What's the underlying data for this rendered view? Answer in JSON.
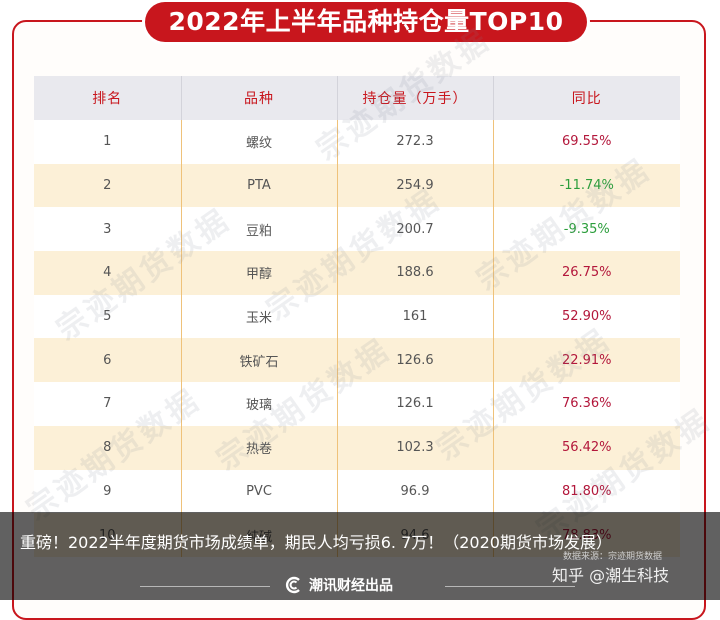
{
  "title": "2022年上半年品种持仓量TOP10",
  "table": {
    "headers": [
      "排名",
      "品种",
      "持仓量（万手）",
      "同比"
    ],
    "rows": [
      {
        "rank": "1",
        "name": "螺纹",
        "volume": "272.3",
        "yoy": "69.55%"
      },
      {
        "rank": "2",
        "name": "PTA",
        "volume": "254.9",
        "yoy": "-11.74%"
      },
      {
        "rank": "3",
        "name": "豆粕",
        "volume": "200.7",
        "yoy": "-9.35%"
      },
      {
        "rank": "4",
        "name": "甲醇",
        "volume": "188.6",
        "yoy": "26.75%"
      },
      {
        "rank": "5",
        "name": "玉米",
        "volume": "161",
        "yoy": "52.90%"
      },
      {
        "rank": "6",
        "name": "铁矿石",
        "volume": "126.6",
        "yoy": "22.91%"
      },
      {
        "rank": "7",
        "name": "玻璃",
        "volume": "126.1",
        "yoy": "76.36%"
      },
      {
        "rank": "8",
        "name": "热卷",
        "volume": "102.3",
        "yoy": "56.42%"
      },
      {
        "rank": "9",
        "name": "PVC",
        "volume": "96.9",
        "yoy": "81.80%"
      },
      {
        "rank": "10",
        "name": "纯碱",
        "volume": "94.6",
        "yoy": "78.83%"
      }
    ]
  },
  "watermark_text": "宗迹期货数据",
  "overlay": {
    "headline": "重磅！2022半年度期货市场成绩单，期民人均亏损6. 7万！（2020期货市场发展）",
    "source": "数据来源：宗迹期货数据",
    "zhihu": "知乎 @潮生科技"
  },
  "footer": {
    "brand": "潮讯财经出品"
  },
  "colors": {
    "accent": "#c8161d",
    "positive": "#b3173b",
    "negative": "#2c9e3c",
    "stripe": "#fcf0d7"
  }
}
